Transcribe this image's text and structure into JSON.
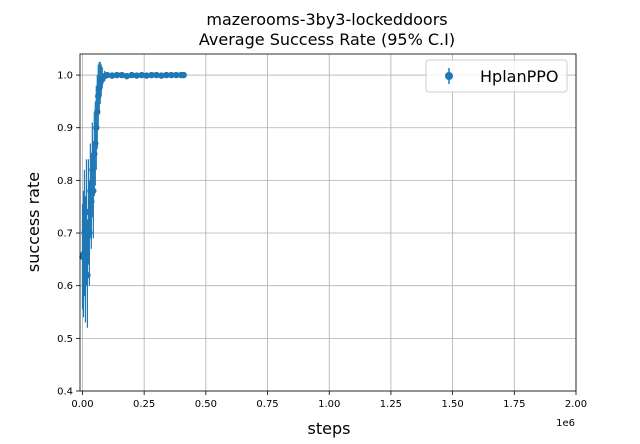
{
  "chart_data": {
    "type": "scatter",
    "title": "mazerooms-3by3-lockeddoors",
    "subtitle": "Average Success Rate (95% C.I)",
    "xlabel": "steps",
    "ylabel": "success rate",
    "x_offset_label": "1e6",
    "xlim": [
      -0.01,
      2.0
    ],
    "ylim": [
      0.4,
      1.04
    ],
    "x_ticks": [
      0.0,
      0.25,
      0.5,
      0.75,
      1.0,
      1.25,
      1.5,
      1.75,
      2.0
    ],
    "x_tick_labels": [
      "0.00",
      "0.25",
      "0.50",
      "0.75",
      "1.00",
      "1.25",
      "1.50",
      "1.75",
      "2.00"
    ],
    "y_ticks": [
      0.4,
      0.5,
      0.6,
      0.7,
      0.8,
      0.9,
      1.0
    ],
    "y_tick_labels": [
      "0.4",
      "0.5",
      "0.6",
      "0.7",
      "0.8",
      "0.9",
      "1.0"
    ],
    "grid": true,
    "legend_position": "top-right",
    "series": [
      {
        "name": "HplanPPO",
        "color": "#1f77b4",
        "points": [
          [
            0.0,
            0.655,
            0.1
          ],
          [
            0.004,
            0.66,
            0.12
          ],
          [
            0.008,
            0.7,
            0.12
          ],
          [
            0.012,
            0.65,
            0.12
          ],
          [
            0.016,
            0.72,
            0.12
          ],
          [
            0.02,
            0.62,
            0.1
          ],
          [
            0.024,
            0.74,
            0.1
          ],
          [
            0.028,
            0.7,
            0.1
          ],
          [
            0.032,
            0.78,
            0.09
          ],
          [
            0.036,
            0.76,
            0.09
          ],
          [
            0.04,
            0.82,
            0.09
          ],
          [
            0.044,
            0.78,
            0.09
          ],
          [
            0.048,
            0.85,
            0.08
          ],
          [
            0.052,
            0.87,
            0.08
          ],
          [
            0.056,
            0.9,
            0.08
          ],
          [
            0.06,
            0.93,
            0.07
          ],
          [
            0.064,
            0.96,
            0.06
          ],
          [
            0.068,
            0.975,
            0.05
          ],
          [
            0.072,
            0.985,
            0.04
          ],
          [
            0.076,
            0.99,
            0.03
          ],
          [
            0.08,
            0.995,
            0.02
          ],
          [
            0.09,
            0.998,
            0.01
          ],
          [
            0.1,
            1.0,
            0.005
          ],
          [
            0.12,
            0.999,
            0.006
          ],
          [
            0.14,
            1.0,
            0.005
          ],
          [
            0.16,
            1.0,
            0.004
          ],
          [
            0.18,
            0.998,
            0.006
          ],
          [
            0.2,
            1.0,
            0.004
          ],
          [
            0.22,
            0.999,
            0.005
          ],
          [
            0.24,
            1.0,
            0.004
          ],
          [
            0.26,
            0.999,
            0.005
          ],
          [
            0.28,
            1.0,
            0.003
          ],
          [
            0.3,
            1.0,
            0.003
          ],
          [
            0.32,
            0.999,
            0.004
          ],
          [
            0.34,
            1.0,
            0.003
          ],
          [
            0.36,
            1.0,
            0.003
          ],
          [
            0.38,
            1.0,
            0.002
          ],
          [
            0.4,
            1.0,
            0.002
          ],
          [
            0.41,
            1.0,
            0.002
          ]
        ]
      }
    ]
  }
}
